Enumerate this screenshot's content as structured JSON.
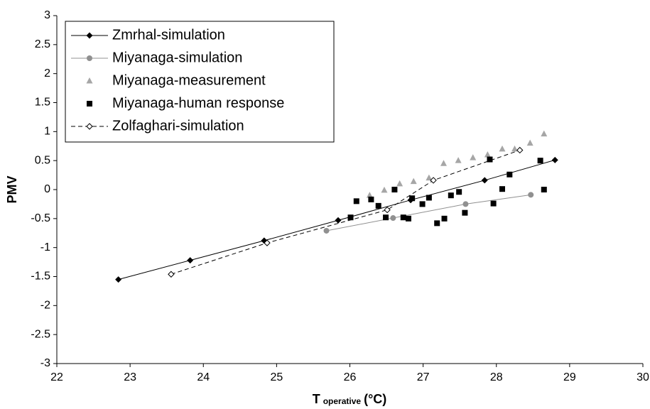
{
  "chart_data": {
    "type": "line",
    "ylabel": "PMV",
    "xlabel": {
      "main": "T",
      "subscript": "operative",
      "unit": "(°C)"
    },
    "xlim": [
      22,
      30
    ],
    "xticks": [
      22,
      23,
      24,
      25,
      26,
      27,
      28,
      29,
      30
    ],
    "ylim": [
      -3,
      3
    ],
    "yticks": [
      -3,
      -2.5,
      -2,
      -1.5,
      -1,
      -0.5,
      0,
      0.5,
      1,
      1.5,
      2,
      2.5,
      3
    ],
    "legend": "upper-left",
    "series": [
      {
        "name": "Zmrhal-simulation",
        "color": "#000000",
        "marker": "diamond",
        "line": "solid",
        "x": [
          22.84,
          23.82,
          24.83,
          25.84,
          26.83,
          27.84,
          28.8
        ],
        "values": [
          -1.55,
          -1.22,
          -0.88,
          -0.53,
          -0.18,
          0.16,
          0.51
        ]
      },
      {
        "name": "Miyanaga-simulation",
        "color": "#909090",
        "marker": "circle",
        "line": "solid",
        "x": [
          25.68,
          26.59,
          27.58,
          28.47
        ],
        "values": [
          -0.71,
          -0.49,
          -0.25,
          -0.09
        ]
      },
      {
        "name": "Miyanaga-measurement",
        "color": "#a6a6a6",
        "marker": "triangle",
        "line": "none",
        "x": [
          26.27,
          26.47,
          26.68,
          26.87,
          27.08,
          27.28,
          27.48,
          27.68,
          27.88,
          28.08,
          28.25,
          28.46,
          28.65
        ],
        "values": [
          -0.1,
          -0.01,
          0.1,
          0.14,
          0.2,
          0.45,
          0.5,
          0.55,
          0.6,
          0.7,
          0.7,
          0.8,
          0.96
        ]
      },
      {
        "name": "Miyanaga-human response",
        "color": "#000000",
        "marker": "square",
        "line": "none",
        "x": [
          26.01,
          26.09,
          26.29,
          26.39,
          26.49,
          26.61,
          26.73,
          26.8,
          26.85,
          26.99,
          27.08,
          27.19,
          27.29,
          27.38,
          27.49,
          27.57,
          27.91,
          27.96,
          28.08,
          28.18,
          28.6,
          28.65
        ],
        "values": [
          -0.48,
          -0.2,
          -0.17,
          -0.28,
          -0.48,
          0.0,
          -0.48,
          -0.5,
          -0.15,
          -0.25,
          -0.14,
          -0.58,
          -0.5,
          -0.1,
          -0.04,
          -0.4,
          0.52,
          -0.24,
          0.01,
          0.26,
          0.5,
          0.0
        ]
      },
      {
        "name": "Zolfaghari-simulation",
        "color": "#000000",
        "marker": "open-diamond",
        "line": "dashed",
        "x": [
          23.56,
          24.87,
          26.51,
          27.14,
          28.32
        ],
        "values": [
          -1.46,
          -0.92,
          -0.35,
          0.16,
          0.68
        ]
      }
    ]
  }
}
